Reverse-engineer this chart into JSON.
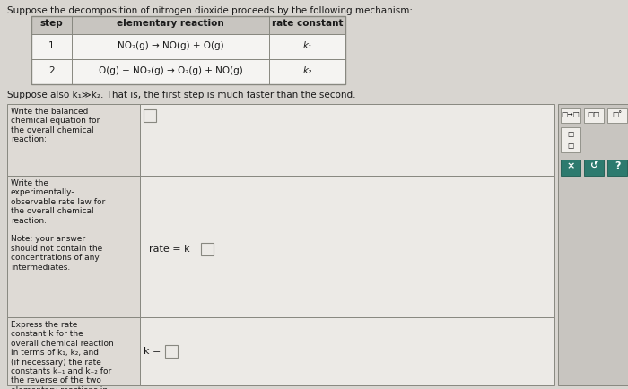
{
  "title_text": "Suppose the decomposition of nitrogen dioxide proceeds by the following mechanism:",
  "suppose_text": "Suppose also k₁≫k₂. That is, the first step is much faster than the second.",
  "table_headers": [
    "step",
    "elementary reaction",
    "rate constant"
  ],
  "table_row1": [
    "1",
    "NO₂(g) → NO(g) + O(g)",
    "k₁"
  ],
  "table_row2": [
    "2",
    "O(g) + NO₂(g) → O₂(g) + NO(g)",
    "k₂"
  ],
  "row1_label": "Write the balanced\nchemical equation for\nthe overall chemical\nreaction:",
  "row2_label": "Write the\nexperimentally-\nobservable rate law for\nthe overall chemical\nreaction.\n\nNote: your answer\nshould not contain the\nconcentrations of any\nintermediates.",
  "row3_label": "Express the rate\nconstant k for the\noverall chemical reaction\nin terms of k₁, k₂, and\n(if necessary) the rate\nconstants k₋₁ and k₋₂ for\nthe reverse of the two\nelementary reactions in\nthe mechanism.",
  "rate_text": "rate = k",
  "k_eq_text": "k = ",
  "bg_color": "#d8d5d0",
  "table_bg_white": "#f5f4f2",
  "table_header_bg": "#c8c5c0",
  "table_border": "#888880",
  "label_col_bg": "#dedad5",
  "input_col_bg": "#eceae6",
  "sidebar_bg": "#c8c5c0",
  "btn_bg": "#f0eeea",
  "action_teal": "#2d7a6e",
  "action_btn_bg": "#2d7a6e",
  "white": "#ffffff",
  "text_dark": "#1a1a1a"
}
